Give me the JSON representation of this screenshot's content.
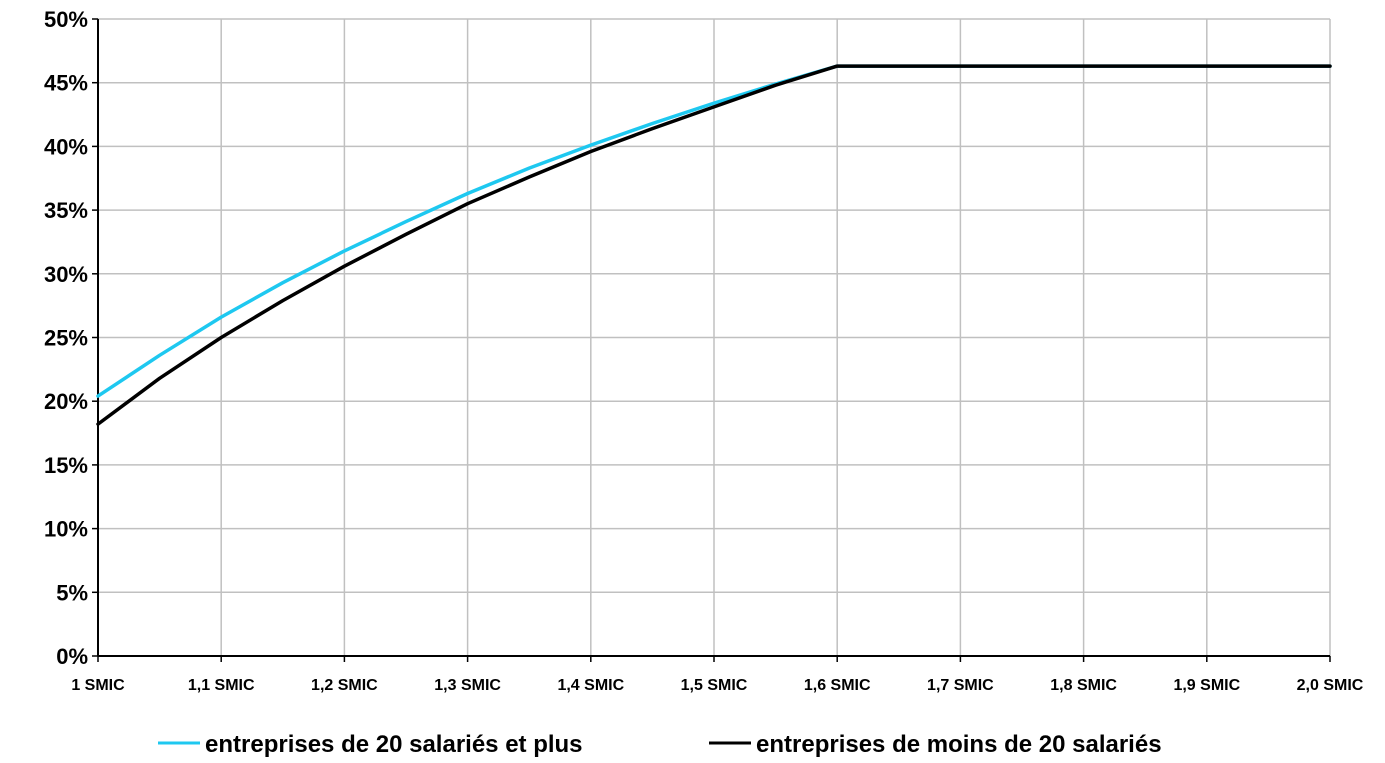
{
  "chart_data": {
    "type": "line",
    "x_tick_labels": [
      "1 SMIC",
      "1,1 SMIC",
      "1,2 SMIC",
      "1,3 SMIC",
      "1,4 SMIC",
      "1,5 SMIC",
      "1,6 SMIC",
      "1,7 SMIC",
      "1,8 SMIC",
      "1,9 SMIC",
      "2,0 SMIC"
    ],
    "y_tick_labels": [
      "0%",
      "5%",
      "10%",
      "15%",
      "20%",
      "25%",
      "30%",
      "35%",
      "40%",
      "45%",
      "50%"
    ],
    "x": [
      1.0,
      1.05,
      1.1,
      1.15,
      1.2,
      1.25,
      1.3,
      1.35,
      1.4,
      1.45,
      1.5,
      1.55,
      1.6,
      1.7,
      1.8,
      1.9,
      2.0
    ],
    "xlim": [
      1.0,
      2.0
    ],
    "ylim": [
      0,
      50
    ],
    "grid": true,
    "legend_position": "bottom",
    "series": [
      {
        "name": "entreprises de 20 salariés et plus",
        "color": "#1ec8f0",
        "values": [
          20.4,
          23.6,
          26.6,
          29.3,
          31.8,
          34.1,
          36.3,
          38.3,
          40.1,
          41.8,
          43.4,
          44.9,
          46.3,
          46.3,
          46.3,
          46.3,
          46.3
        ]
      },
      {
        "name": "entreprises de moins de 20 salariés",
        "color": "#000000",
        "values": [
          18.2,
          21.8,
          25.0,
          27.9,
          30.6,
          33.1,
          35.5,
          37.6,
          39.6,
          41.4,
          43.1,
          44.8,
          46.3,
          46.3,
          46.3,
          46.3,
          46.3
        ]
      }
    ]
  }
}
